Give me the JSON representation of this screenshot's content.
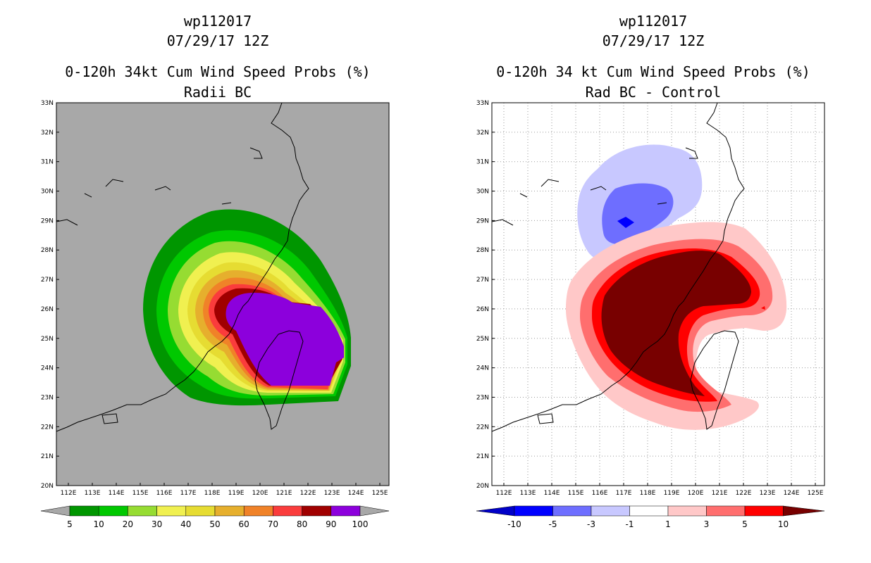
{
  "left_panel": {
    "title_line1": "wp112017",
    "title_line2": "07/29/17 12Z",
    "title_line3": "0-120h 34kt Cum Wind Speed Probs (%)",
    "title_line4": "Radii BC",
    "lat_labels": [
      "33N",
      "32N",
      "31N",
      "30N",
      "29N",
      "28N",
      "27N",
      "26N",
      "25N",
      "24N",
      "23N",
      "22N",
      "21N",
      "20N"
    ],
    "lon_labels": [
      "112E",
      "113E",
      "114E",
      "115E",
      "116E",
      "117E",
      "118E",
      "119E",
      "120E",
      "121E",
      "122E",
      "123E",
      "124E",
      "125E"
    ],
    "colorbar_labels": [
      "5",
      "10",
      "20",
      "30",
      "40",
      "50",
      "60",
      "70",
      "80",
      "90",
      "100"
    ],
    "colorbar_colors": [
      "#009600",
      "#00c800",
      "#96dc32",
      "#f0f050",
      "#e6dc32",
      "#e6af2d",
      "#f08228",
      "#fa3c3c",
      "#a00000",
      "#8c00dc"
    ],
    "background_color": "#a8a8a8"
  },
  "right_panel": {
    "title_line1": "wp112017",
    "title_line2": "07/29/17 12Z",
    "title_line3": "0-120h 34 kt Cum Wind Speed Probs (%)",
    "title_line4": "Rad BC - Control",
    "lat_labels": [
      "33N",
      "32N",
      "31N",
      "30N",
      "29N",
      "28N",
      "27N",
      "26N",
      "25N",
      "24N",
      "23N",
      "22N",
      "21N",
      "20N"
    ],
    "lon_labels": [
      "112E",
      "113E",
      "114E",
      "115E",
      "116E",
      "117E",
      "118E",
      "119E",
      "120E",
      "121E",
      "122E",
      "123E",
      "124E",
      "125E"
    ],
    "colorbar_labels": [
      "-10",
      "-5",
      "-3",
      "-1",
      "1",
      "3",
      "5",
      "10"
    ],
    "colorbar_colors": [
      "#0000c8",
      "#0000ff",
      "#6e6eff",
      "#c8c8ff",
      "#ffffff",
      "#ffc8c8",
      "#ff6e6e",
      "#ff0000",
      "#780000"
    ]
  }
}
